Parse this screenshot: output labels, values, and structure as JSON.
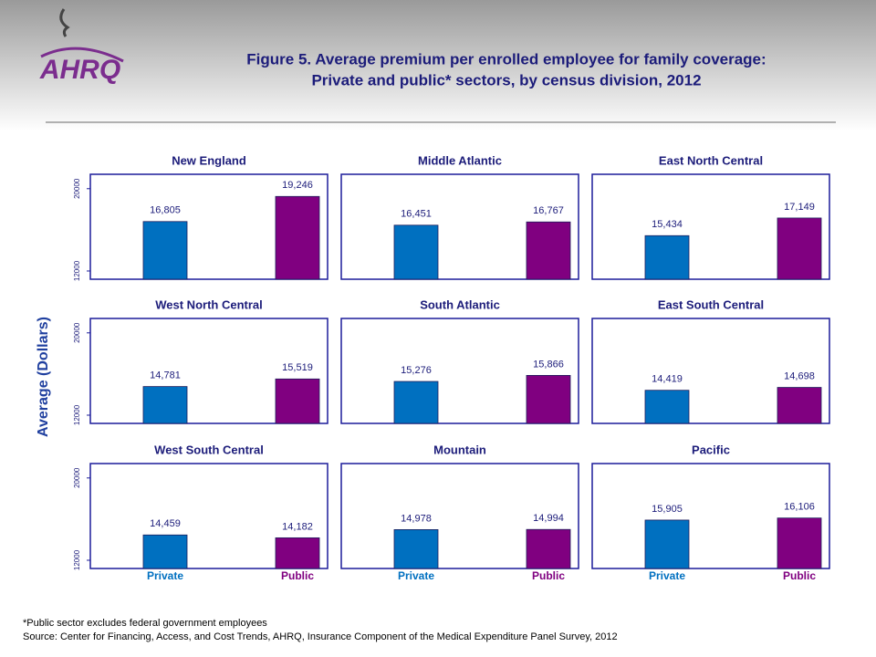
{
  "logo": "AHRQ",
  "title_lines": [
    "Figure 5. Average premium per enrolled employee for family coverage:",
    "Private and public* sectors, by census division, 2012"
  ],
  "y_label": "Average (Dollars)",
  "footnotes": [
    "*Public sector excludes federal government employees",
    "Source: Center for Financing, Access, and Cost Trends, AHRQ, Insurance Component of the Medical Expenditure Panel Survey,  2012"
  ],
  "chart_data": [
    {
      "type": "bar",
      "title": "New England",
      "categories": [
        null,
        null
      ],
      "values": [
        16805,
        19246
      ],
      "value_labels": [
        "16,805",
        "19,246"
      ],
      "colors": [
        "#0070c0",
        "#800080"
      ],
      "ylim": [
        11200,
        21400
      ],
      "yticks": [
        12000,
        20000
      ]
    },
    {
      "type": "bar",
      "title": "Middle Atlantic",
      "categories": [
        null,
        null
      ],
      "values": [
        16451,
        16767
      ],
      "value_labels": [
        "16,451",
        "16,767"
      ],
      "colors": [
        "#0070c0",
        "#800080"
      ],
      "ylim": [
        11200,
        21400
      ]
    },
    {
      "type": "bar",
      "title": "East North Central",
      "categories": [
        null,
        null
      ],
      "values": [
        15434,
        17149
      ],
      "value_labels": [
        "15,434",
        "17,149"
      ],
      "colors": [
        "#0070c0",
        "#800080"
      ],
      "ylim": [
        11200,
        21400
      ]
    },
    {
      "type": "bar",
      "title": "West North Central",
      "categories": [
        null,
        null
      ],
      "values": [
        14781,
        15519
      ],
      "value_labels": [
        "14,781",
        "15,519"
      ],
      "colors": [
        "#0070c0",
        "#800080"
      ],
      "ylim": [
        11200,
        21400
      ],
      "yticks": [
        12000,
        20000
      ]
    },
    {
      "type": "bar",
      "title": "South Atlantic",
      "categories": [
        null,
        null
      ],
      "values": [
        15276,
        15866
      ],
      "value_labels": [
        "15,276",
        "15,866"
      ],
      "colors": [
        "#0070c0",
        "#800080"
      ],
      "ylim": [
        11200,
        21400
      ]
    },
    {
      "type": "bar",
      "title": "East South Central",
      "categories": [
        null,
        null
      ],
      "values": [
        14419,
        14698
      ],
      "value_labels": [
        "14,419",
        "14,698"
      ],
      "colors": [
        "#0070c0",
        "#800080"
      ],
      "ylim": [
        11200,
        21400
      ]
    },
    {
      "type": "bar",
      "title": "West South Central",
      "categories": [
        "Private",
        "Public"
      ],
      "values": [
        14459,
        14182
      ],
      "value_labels": [
        "14,459",
        "14,182"
      ],
      "colors": [
        "#0070c0",
        "#800080"
      ],
      "ylim": [
        11200,
        21400
      ],
      "yticks": [
        12000,
        20000
      ]
    },
    {
      "type": "bar",
      "title": "Mountain",
      "categories": [
        "Private",
        "Public"
      ],
      "values": [
        14978,
        14994
      ],
      "value_labels": [
        "14,978",
        "14,994"
      ],
      "colors": [
        "#0070c0",
        "#800080"
      ],
      "ylim": [
        11200,
        21400
      ]
    },
    {
      "type": "bar",
      "title": "Pacific",
      "categories": [
        "Private",
        "Public"
      ],
      "values": [
        15905,
        16106
      ],
      "value_labels": [
        "15,905",
        "16,106"
      ],
      "colors": [
        "#0070c0",
        "#800080"
      ],
      "ylim": [
        11200,
        21400
      ]
    }
  ]
}
